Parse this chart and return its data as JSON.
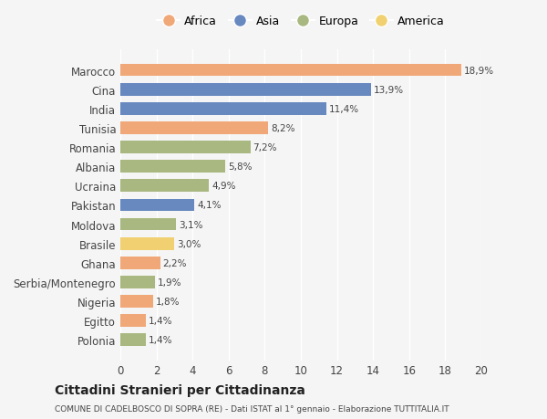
{
  "countries": [
    "Marocco",
    "Cina",
    "India",
    "Tunisia",
    "Romania",
    "Albania",
    "Ucraina",
    "Pakistan",
    "Moldova",
    "Brasile",
    "Ghana",
    "Serbia/Montenegro",
    "Nigeria",
    "Egitto",
    "Polonia"
  ],
  "values": [
    18.9,
    13.9,
    11.4,
    8.2,
    7.2,
    5.8,
    4.9,
    4.1,
    3.1,
    3.0,
    2.2,
    1.9,
    1.8,
    1.4,
    1.4
  ],
  "bar_colors": [
    "#F0A878",
    "#6888C0",
    "#6888C0",
    "#F0A878",
    "#A8B880",
    "#A8B880",
    "#A8B880",
    "#6888C0",
    "#A8B880",
    "#F0D070",
    "#F0A878",
    "#A8B880",
    "#F0A878",
    "#F0A878",
    "#A8B880"
  ],
  "legend_labels": [
    "Africa",
    "Asia",
    "Europa",
    "America"
  ],
  "legend_colors": [
    "#F0A878",
    "#6888C0",
    "#A8B880",
    "#F0D070"
  ],
  "xlim": [
    0,
    20
  ],
  "xticks": [
    0,
    2,
    4,
    6,
    8,
    10,
    12,
    14,
    16,
    18,
    20
  ],
  "title": "Cittadini Stranieri per Cittadinanza",
  "subtitle": "COMUNE DI CADELBOSCO DI SOPRA (RE) - Dati ISTAT al 1° gennaio - Elaborazione TUTTITALIA.IT",
  "background_color": "#f5f5f5",
  "label_format": [
    "18,9%",
    "13,9%",
    "11,4%",
    "8,2%",
    "7,2%",
    "5,8%",
    "4,9%",
    "4,1%",
    "3,1%",
    "3,0%",
    "2,2%",
    "1,9%",
    "1,8%",
    "1,4%",
    "1,4%"
  ]
}
